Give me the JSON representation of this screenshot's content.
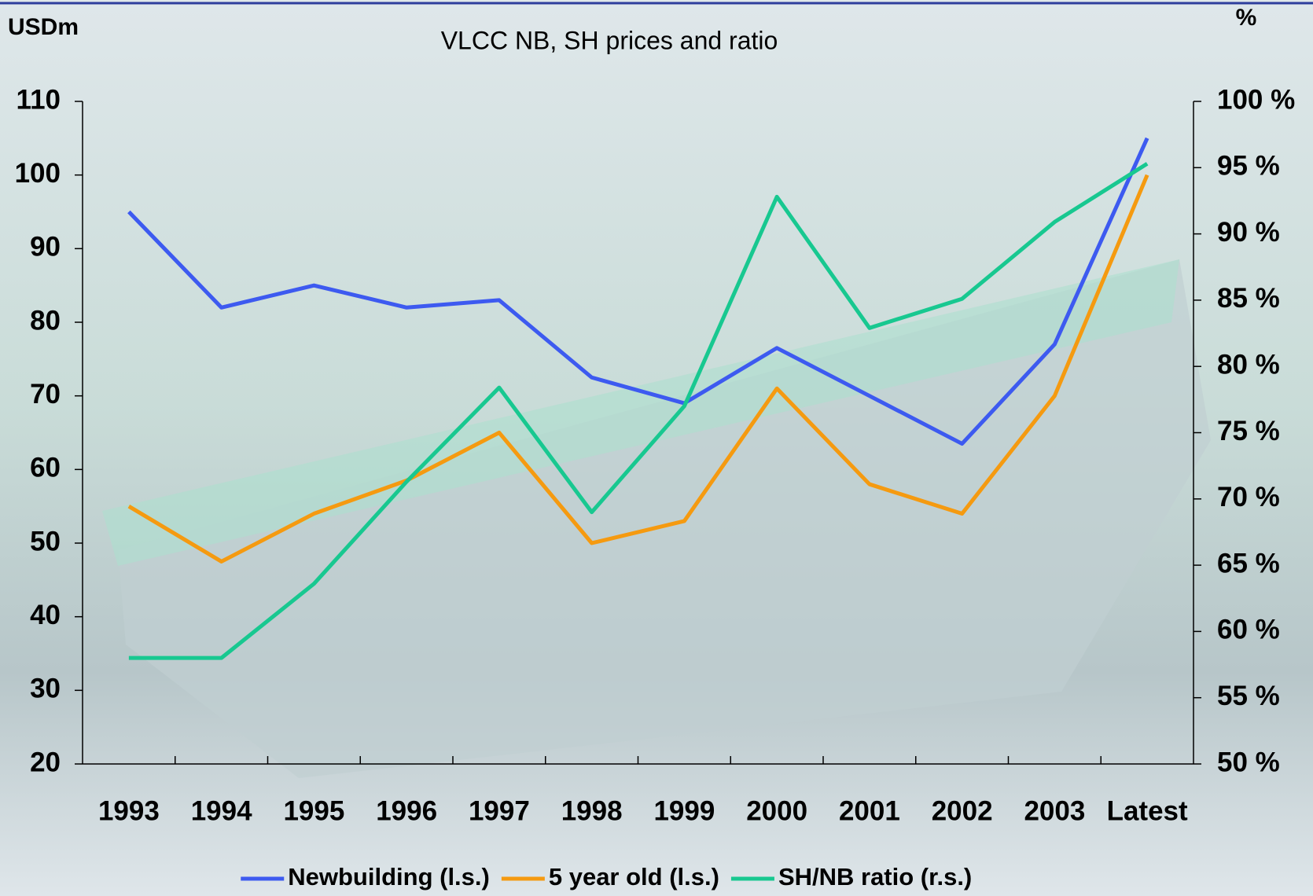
{
  "chart_data": {
    "type": "line",
    "title": "VLCC NB, SH prices and ratio",
    "y_label": "USDm",
    "y2_label": "%",
    "categories": [
      "1993",
      "1994",
      "1995",
      "1996",
      "1997",
      "1998",
      "1999",
      "2000",
      "2001",
      "2002",
      "2003",
      "Latest"
    ],
    "series": [
      {
        "name": "Newbuilding (l.s.)",
        "color": "#3d5af0",
        "values": [
          95,
          82,
          85,
          82,
          83,
          72.5,
          69,
          76.5,
          70,
          63.5,
          77,
          105
        ]
      },
      {
        "name": "5 year old (l.s.)",
        "color": "#f59a10",
        "values": [
          55,
          47.5,
          54,
          58.5,
          65,
          50,
          53,
          71,
          58,
          54,
          70,
          100
        ]
      },
      {
        "name": "SH/NB ratio (r.s.)",
        "color": "#18c890",
        "axis": "y2",
        "values": [
          58,
          58,
          63.6,
          71.3,
          78.4,
          69,
          77,
          92.8,
          82.9,
          85.1,
          90.9,
          95.3
        ]
      }
    ],
    "ylim": [
      20,
      110
    ],
    "yticks": [
      20,
      30,
      40,
      50,
      60,
      70,
      80,
      90,
      100,
      110
    ],
    "y2lim": [
      50,
      100
    ],
    "y2ticks": [
      {
        "value": 50,
        "label": "50 %"
      },
      {
        "value": 55,
        "label": "55 %"
      },
      {
        "value": 60,
        "label": "60 %"
      },
      {
        "value": 65,
        "label": "65 %"
      },
      {
        "value": 70,
        "label": "70 %"
      },
      {
        "value": 75,
        "label": "75 %"
      },
      {
        "value": 80,
        "label": "80 %"
      },
      {
        "value": 85,
        "label": "85 %"
      },
      {
        "value": 90,
        "label": "90 %"
      },
      {
        "value": 95,
        "label": "95 %"
      },
      {
        "value": 100,
        "label": "100 %"
      }
    ],
    "legend": "bottom"
  }
}
